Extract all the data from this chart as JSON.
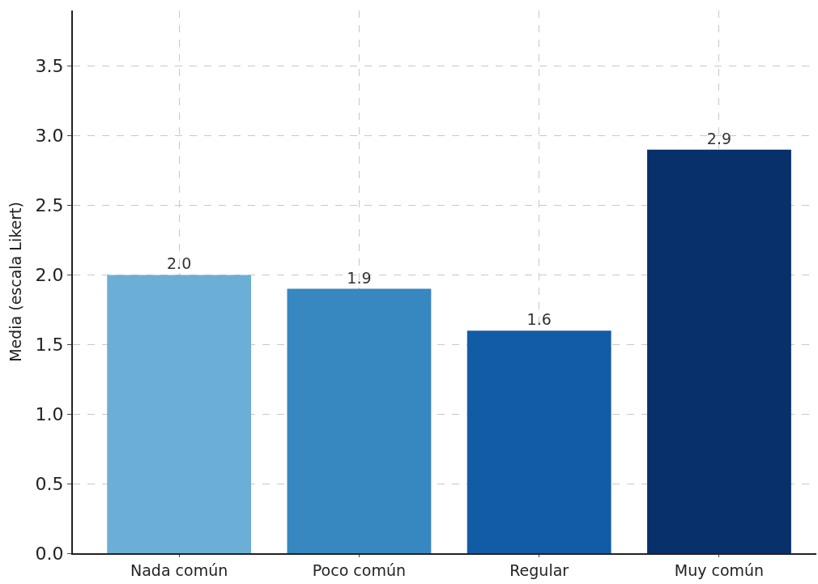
{
  "chart_data": {
    "type": "bar",
    "ylabel": "Media (escala Likert)",
    "categories": [
      "Nada común",
      "Poco común",
      "Regular",
      "Muy común"
    ],
    "values": [
      2.0,
      1.9,
      1.6,
      2.9
    ],
    "colors": [
      "#6baed6",
      "#3787c0",
      "#125ca5",
      "#08306b"
    ],
    "value_labels": [
      "2.0",
      "1.9",
      "1.6",
      "2.9"
    ],
    "ylim": [
      0,
      3.9
    ],
    "yticks": [
      {
        "value": 0,
        "label": "0.0"
      },
      {
        "value": 0.5,
        "label": "0.5"
      },
      {
        "value": 1,
        "label": "1.0"
      },
      {
        "value": 1.5,
        "label": "1.5"
      },
      {
        "value": 2,
        "label": "2.0"
      },
      {
        "value": 2.5,
        "label": "2.5"
      },
      {
        "value": 3,
        "label": "3.0"
      },
      {
        "value": 3.5,
        "label": "3.5"
      }
    ],
    "grid": true
  }
}
